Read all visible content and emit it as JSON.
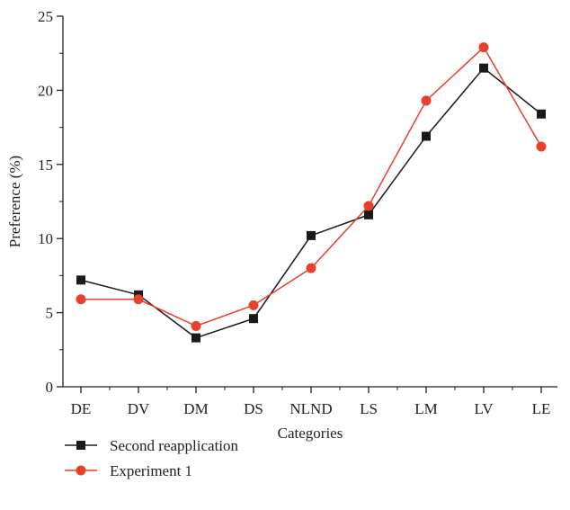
{
  "chart_data": {
    "type": "line",
    "title": "",
    "xlabel": "Categories",
    "ylabel": "Preference (%)",
    "ylim": [
      0,
      25
    ],
    "yticks": [
      0,
      5,
      10,
      15,
      20,
      25
    ],
    "categories": [
      "DE",
      "DV",
      "DM",
      "DS",
      "NLND",
      "LS",
      "LM",
      "LV",
      "LE"
    ],
    "grid": false,
    "legend_position": "bottom-left",
    "series": [
      {
        "name": "Second reapplication",
        "marker": "square",
        "color": "#1a1a1a",
        "values": [
          7.2,
          6.2,
          3.3,
          4.6,
          10.2,
          11.6,
          16.9,
          21.5,
          18.4
        ]
      },
      {
        "name": "Experiment 1",
        "marker": "circle",
        "color": "#e8402a",
        "values": [
          5.9,
          5.9,
          4.1,
          5.5,
          8.0,
          12.2,
          19.3,
          22.9,
          16.2
        ]
      }
    ]
  }
}
